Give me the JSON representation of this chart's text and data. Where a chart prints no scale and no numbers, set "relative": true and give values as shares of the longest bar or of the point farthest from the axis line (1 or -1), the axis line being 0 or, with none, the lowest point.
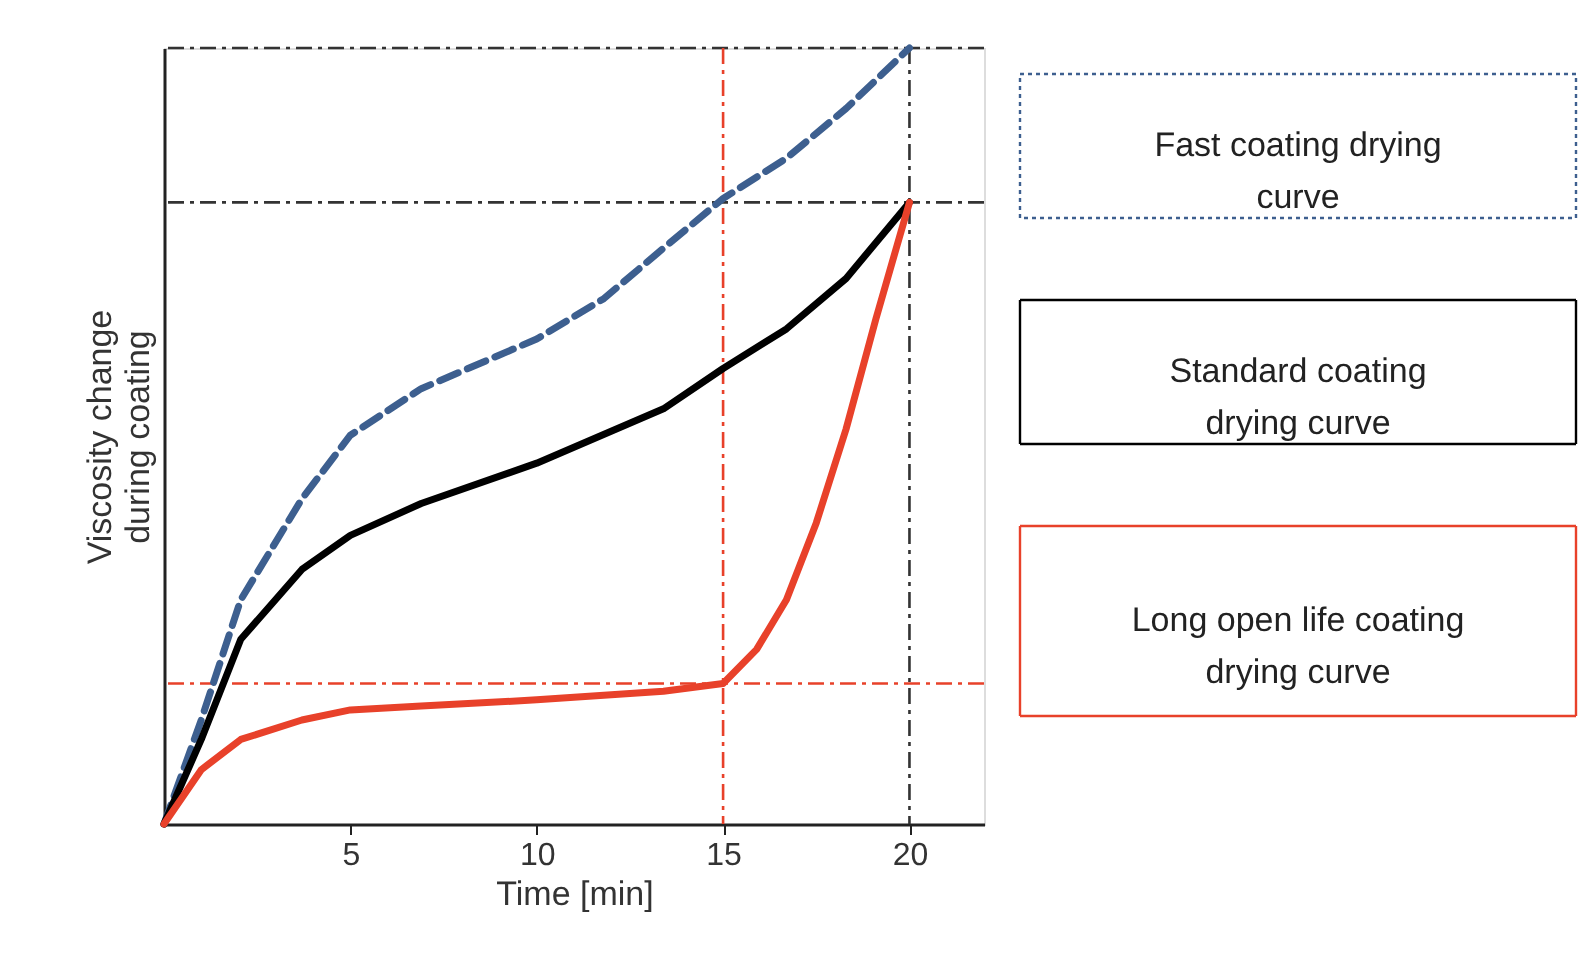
{
  "chart_data": {
    "type": "line",
    "relative": true,
    "xlabel": "Time [min]",
    "ylabel": "Viscosity change during coating",
    "xlim": [
      0,
      22
    ],
    "xticks": [
      5,
      10,
      15,
      20
    ],
    "grid": false,
    "legend": false,
    "marker": "none",
    "series": [
      {
        "name": "Fast coating drying curve",
        "color": "#3d5f8f",
        "line_style": "dashed",
        "x": [
          0,
          1,
          2.06,
          3.7,
          5,
          6.9,
          10,
          11.8,
          13.4,
          15,
          16.7,
          18.3,
          20
        ],
        "values": [
          0,
          0.134,
          0.289,
          0.419,
          0.501,
          0.561,
          0.625,
          0.677,
          0.742,
          0.806,
          0.858,
          0.922,
          1
        ]
      },
      {
        "name": "Standard coating drying curve",
        "color": "#000000",
        "line_style": "solid",
        "x": [
          0,
          1,
          2.06,
          3.7,
          5,
          6.9,
          10,
          13.4,
          15,
          16.7,
          18.3,
          20
        ],
        "values": [
          0,
          0.109,
          0.238,
          0.328,
          0.372,
          0.413,
          0.465,
          0.535,
          0.587,
          0.638,
          0.703,
          0.801
        ]
      },
      {
        "name": "Long open life coating drying curve",
        "color": "#e8412a",
        "line_style": "solid",
        "x": [
          0,
          1,
          2.06,
          3.7,
          5,
          6.9,
          10,
          13.4,
          15,
          15.9,
          16.7,
          17.5,
          18.3,
          19.1,
          20
        ],
        "values": [
          0,
          0.07,
          0.109,
          0.134,
          0.147,
          0.152,
          0.16,
          0.171,
          0.181,
          0.225,
          0.289,
          0.388,
          0.509,
          0.651,
          0.801
        ]
      }
    ],
    "ref_lines": [
      {
        "axis": "y",
        "value": 1,
        "color": "#333333",
        "line_style": "dashdot"
      },
      {
        "axis": "y",
        "value": 0.801,
        "color": "#333333",
        "line_style": "dashdot"
      },
      {
        "axis": "y",
        "value": 0.181,
        "color": "#e8412a",
        "line_style": "dashdot"
      },
      {
        "axis": "x",
        "value": 15,
        "color": "#e8412a",
        "line_style": "dashdot"
      },
      {
        "axis": "x",
        "value": 20,
        "color": "#333333",
        "line_style": "dashdot"
      }
    ]
  }
}
